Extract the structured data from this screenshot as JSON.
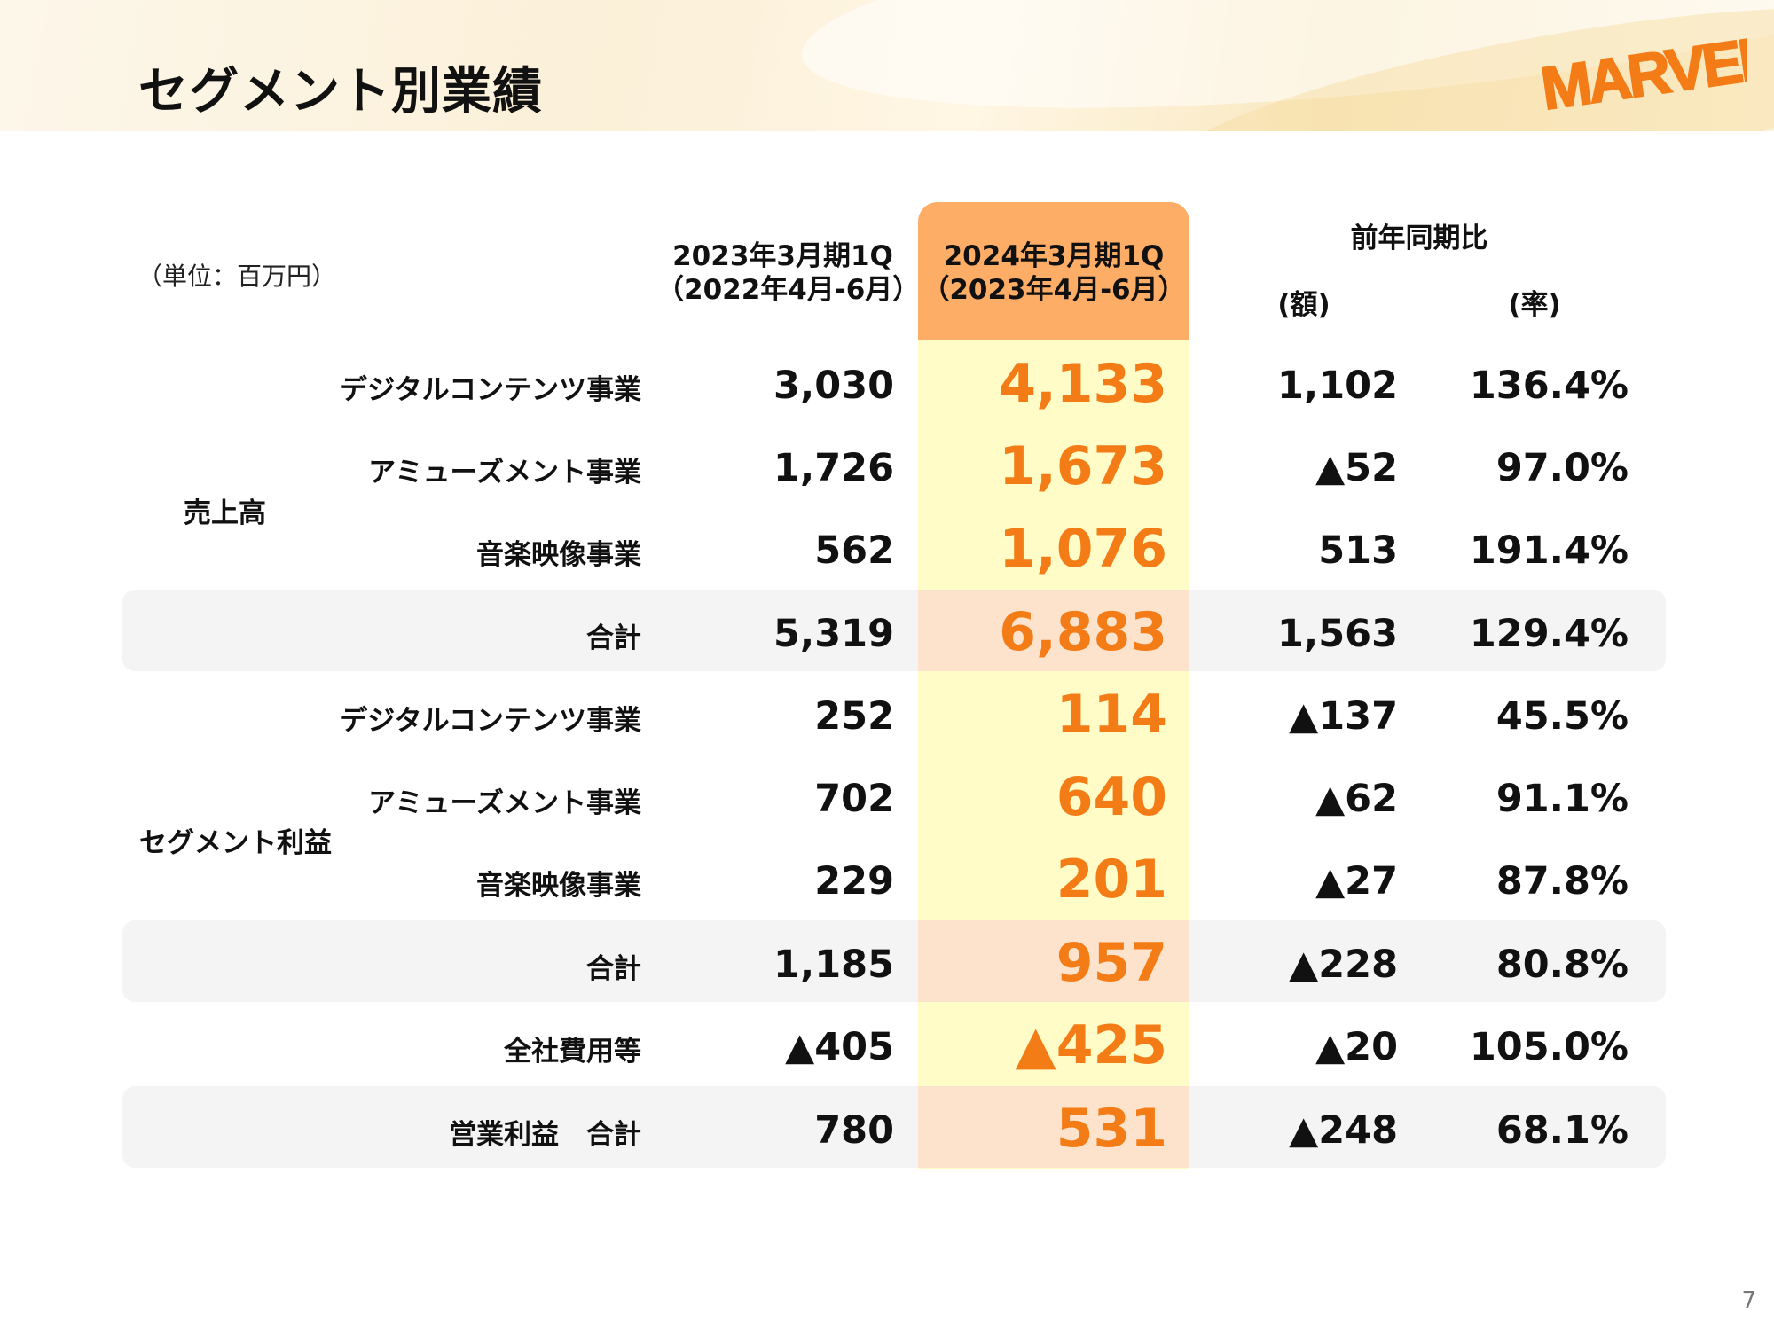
{
  "header": {
    "title": "セグメント別業績"
  },
  "logo": {
    "text": "MARVELOUS!",
    "color": "#f47c16"
  },
  "unit_note": "（単位：百万円）",
  "columns": {
    "prev": {
      "line1": "2023年3月期1Q",
      "line2": "（2022年4月-6月）"
    },
    "cur": {
      "line1": "2024年3月期1Q",
      "line2": "（2023年4月-6月）"
    },
    "yoy": {
      "title": "前年同期比",
      "diff": "(額)",
      "rate": "(率)"
    }
  },
  "groups": {
    "sales": "売上高",
    "profit": "セグメント利益"
  },
  "rows": [
    {
      "label": "デジタルコンテンツ事業",
      "prev": "3,030",
      "cur": "4,133",
      "diff": "1,102",
      "rate": "136.4%"
    },
    {
      "label": "アミューズメント事業",
      "prev": "1,726",
      "cur": "1,673",
      "diff": "▲52",
      "rate": "97.0%"
    },
    {
      "label": "音楽映像事業",
      "prev": "562",
      "cur": "1,076",
      "diff": "513",
      "rate": "191.4%"
    },
    {
      "label": "合計",
      "prev": "5,319",
      "cur": "6,883",
      "diff": "1,563",
      "rate": "129.4%"
    },
    {
      "label": "デジタルコンテンツ事業",
      "prev": "252",
      "cur": "114",
      "diff": "▲137",
      "rate": "45.5%"
    },
    {
      "label": "アミューズメント事業",
      "prev": "702",
      "cur": "640",
      "diff": "▲62",
      "rate": "91.1%"
    },
    {
      "label": "音楽映像事業",
      "prev": "229",
      "cur": "201",
      "diff": "▲27",
      "rate": "87.8%"
    },
    {
      "label": "合計",
      "prev": "1,185",
      "cur": "957",
      "diff": "▲228",
      "rate": "80.8%"
    },
    {
      "label": "全社費用等",
      "prev": "▲405",
      "cur": "▲425",
      "diff": "▲20",
      "rate": "105.0%"
    },
    {
      "label": "営業利益　合計",
      "prev": "780",
      "cur": "531",
      "diff": "▲248",
      "rate": "68.1%"
    }
  ],
  "colors": {
    "accent": "#f47c16",
    "highlight_header": "#fdad66",
    "highlight_body": "#fffcc8",
    "total_row": "#f4f4f4",
    "total_highlight": "#fde2cc"
  },
  "page_number": "7"
}
